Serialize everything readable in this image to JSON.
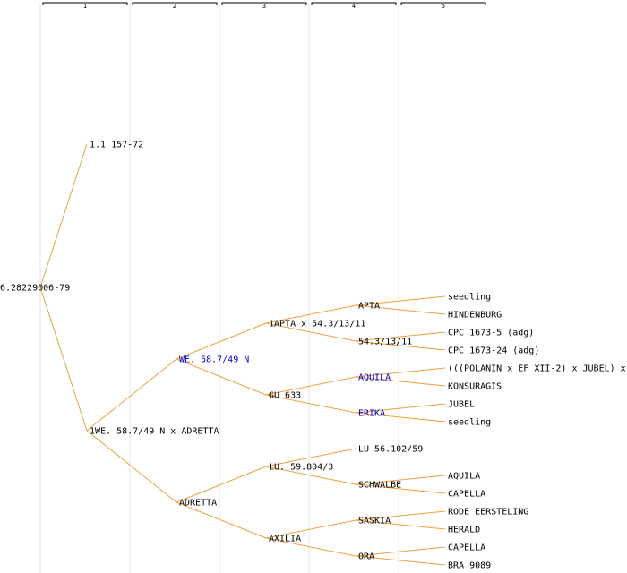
{
  "generation_labels": [
    "1",
    "2",
    "3",
    "4",
    "5"
  ],
  "colors": {
    "edge": "#f0a040",
    "guide": "#e6e6e6",
    "text": "#000000",
    "highlight": "#0000cc"
  },
  "nodes": [
    {
      "id": "root",
      "label": "6.28229006-79"
    },
    {
      "id": "n1",
      "label": "1.1 157-72"
    },
    {
      "id": "n2",
      "label": "1WE. 58.7/49 N x ADRETTA"
    },
    {
      "id": "n3",
      "label": "WE. 58.7/49 N",
      "highlight": true
    },
    {
      "id": "n4",
      "label": "ADRETTA"
    },
    {
      "id": "n5",
      "label": "1APTA x 54.3/13/11"
    },
    {
      "id": "n6",
      "label": "GU 633"
    },
    {
      "id": "n7",
      "label": "LU. 59.804/3"
    },
    {
      "id": "n8",
      "label": "AXILIA"
    },
    {
      "id": "n9",
      "label": "APTA"
    },
    {
      "id": "n10",
      "label": "54.3/13/11"
    },
    {
      "id": "n11",
      "label": "AQUILA",
      "highlight": true
    },
    {
      "id": "n12",
      "label": "ERIKA",
      "highlight": true
    },
    {
      "id": "n13",
      "label": "LU 56.102/59"
    },
    {
      "id": "n14",
      "label": "SCHWALBE"
    },
    {
      "id": "n15",
      "label": "SASKIA"
    },
    {
      "id": "n16",
      "label": "ORA"
    },
    {
      "id": "n17",
      "label": "seedling"
    },
    {
      "id": "n18",
      "label": "HINDENBURG"
    },
    {
      "id": "n19",
      "label": "CPC 1673-5 (adg)"
    },
    {
      "id": "n20",
      "label": "CPC 1673-24 (adg)"
    },
    {
      "id": "n21",
      "label": "(((POLANIN x EF XII-2) x JUBEL) x"
    },
    {
      "id": "n22",
      "label": "KONSURAGIS"
    },
    {
      "id": "n23",
      "label": "JUBEL"
    },
    {
      "id": "n24",
      "label": "seedling"
    },
    {
      "id": "n25",
      "label": "AQUILA"
    },
    {
      "id": "n26",
      "label": "CAPELLA"
    },
    {
      "id": "n27",
      "label": "RODE EERSTELING"
    },
    {
      "id": "n28",
      "label": "HERALD"
    },
    {
      "id": "n29",
      "label": "CAPELLA"
    },
    {
      "id": "n30",
      "label": "BRA 9089"
    }
  ],
  "edges": [
    [
      "root",
      "n1"
    ],
    [
      "root",
      "n2"
    ],
    [
      "n2",
      "n3"
    ],
    [
      "n2",
      "n4"
    ],
    [
      "n3",
      "n5"
    ],
    [
      "n3",
      "n6"
    ],
    [
      "n4",
      "n7"
    ],
    [
      "n4",
      "n8"
    ],
    [
      "n5",
      "n9"
    ],
    [
      "n5",
      "n10"
    ],
    [
      "n6",
      "n11"
    ],
    [
      "n6",
      "n12"
    ],
    [
      "n7",
      "n13"
    ],
    [
      "n7",
      "n14"
    ],
    [
      "n8",
      "n15"
    ],
    [
      "n8",
      "n16"
    ],
    [
      "n9",
      "n17"
    ],
    [
      "n9",
      "n18"
    ],
    [
      "n10",
      "n19"
    ],
    [
      "n10",
      "n20"
    ],
    [
      "n11",
      "n21"
    ],
    [
      "n11",
      "n22"
    ],
    [
      "n12",
      "n23"
    ],
    [
      "n12",
      "n24"
    ],
    [
      "n14",
      "n25"
    ],
    [
      "n14",
      "n26"
    ],
    [
      "n15",
      "n27"
    ],
    [
      "n15",
      "n28"
    ],
    [
      "n16",
      "n29"
    ],
    [
      "n16",
      "n30"
    ]
  ]
}
